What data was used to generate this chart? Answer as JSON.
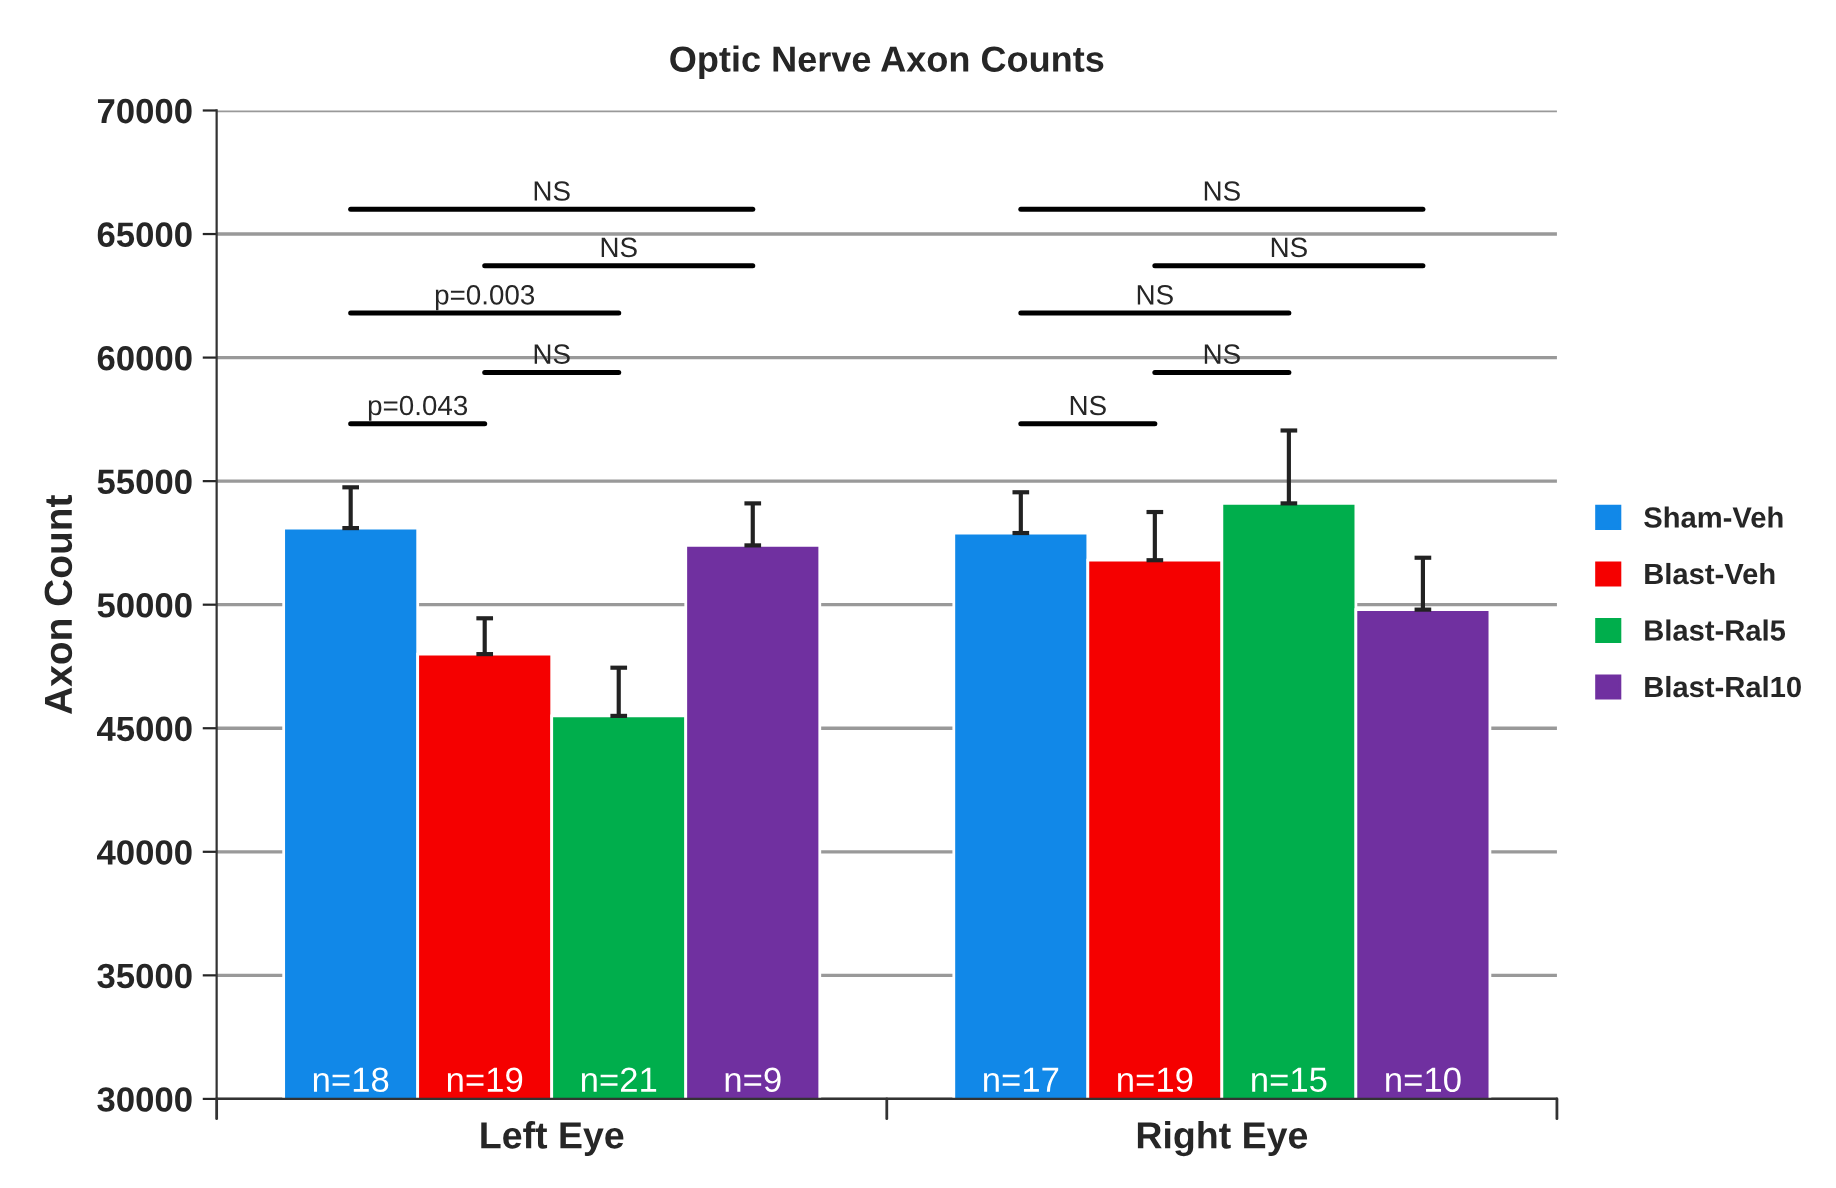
{
  "chart_data": {
    "type": "bar",
    "title": "Optic Nerve Axon Counts",
    "ylabel": "Axon Count",
    "categories": [
      "Left Eye",
      "Right Eye"
    ],
    "series": [
      {
        "name": "Sham-Veh",
        "color": "#1188e8",
        "values": [
          53100,
          52900
        ],
        "errors": [
          1650,
          1650
        ]
      },
      {
        "name": "Blast-Veh",
        "color": "#f50000",
        "values": [
          48000,
          51800
        ],
        "errors": [
          1450,
          1950
        ]
      },
      {
        "name": "Blast-Ral5",
        "color": "#00ae4c",
        "values": [
          45500,
          54100
        ],
        "errors": [
          1950,
          2950
        ]
      },
      {
        "name": "Blast-Ral10",
        "color": "#7030a0",
        "values": [
          52400,
          49800
        ],
        "errors": [
          1700,
          2100
        ]
      }
    ],
    "ylim": [
      30000,
      70000
    ],
    "yticks": [
      30000,
      35000,
      40000,
      45000,
      50000,
      55000,
      60000,
      65000,
      70000
    ],
    "grid": "y",
    "legend": "right",
    "annotations": [
      "NS",
      "NS",
      "p=0.003",
      "NS",
      "p=0.043",
      "NS",
      "NS",
      "NS",
      "NS",
      "NS",
      "n=18",
      "n=19",
      "n=21",
      "n=9",
      "n=17",
      "n=19",
      "n=15",
      "n=10"
    ]
  }
}
